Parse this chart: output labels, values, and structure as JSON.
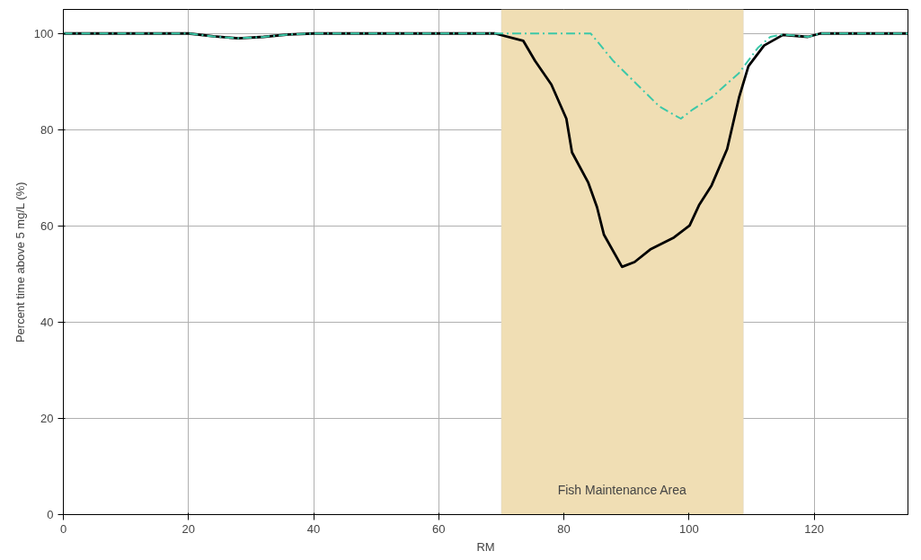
{
  "chart_data": {
    "type": "line",
    "xlabel": "RM",
    "ylabel": "Percent time above 5 mg/L (%)",
    "xlim": [
      0,
      135
    ],
    "ylim": [
      0,
      105
    ],
    "xticks": [
      0,
      20,
      40,
      60,
      80,
      100,
      120
    ],
    "yticks": [
      0,
      20,
      40,
      60,
      80,
      100
    ],
    "grid": true,
    "bands": [
      {
        "axis": "x",
        "from": 70,
        "to": 108.7,
        "label": "Fish Maintenance Area",
        "color": "#f0deb4"
      }
    ],
    "series": [
      {
        "color": "#000000",
        "line_style": "solid",
        "x": [
          0,
          20,
          24,
          28,
          32,
          36,
          40,
          60,
          69,
          73.5,
          75.4,
          78,
          80.4,
          81.3,
          83.9,
          85.3,
          86.4,
          89.3,
          91.3,
          93.8,
          97.6,
          100.1,
          101.6,
          103.6,
          106.1,
          108,
          109.5,
          112,
          115,
          119,
          121,
          135
        ],
        "values": [
          100,
          100,
          99.4,
          99,
          99.3,
          99.8,
          100,
          100,
          100,
          98.5,
          94.3,
          89.4,
          82.3,
          75.3,
          69,
          63.9,
          58.2,
          51.5,
          52.5,
          55.1,
          57.6,
          60.1,
          64.3,
          68.4,
          76,
          86.7,
          93.2,
          97.5,
          99.7,
          99.3,
          100,
          100
        ]
      },
      {
        "color": "#3cc8a8",
        "line_style": "dashdot",
        "x": [
          0,
          20,
          24,
          28,
          32,
          36,
          40,
          60,
          70,
          84.3,
          87.9,
          91.7,
          95.3,
          98.7,
          100.6,
          103.6,
          108,
          111,
          113,
          115,
          119,
          121,
          135
        ],
        "values": [
          100,
          100,
          99.4,
          99,
          99.3,
          99.8,
          100,
          100,
          100,
          100,
          94.3,
          89.4,
          84.8,
          82.3,
          84.2,
          86.7,
          91.8,
          97,
          99.3,
          99.8,
          99.3,
          100,
          100
        ]
      }
    ]
  }
}
